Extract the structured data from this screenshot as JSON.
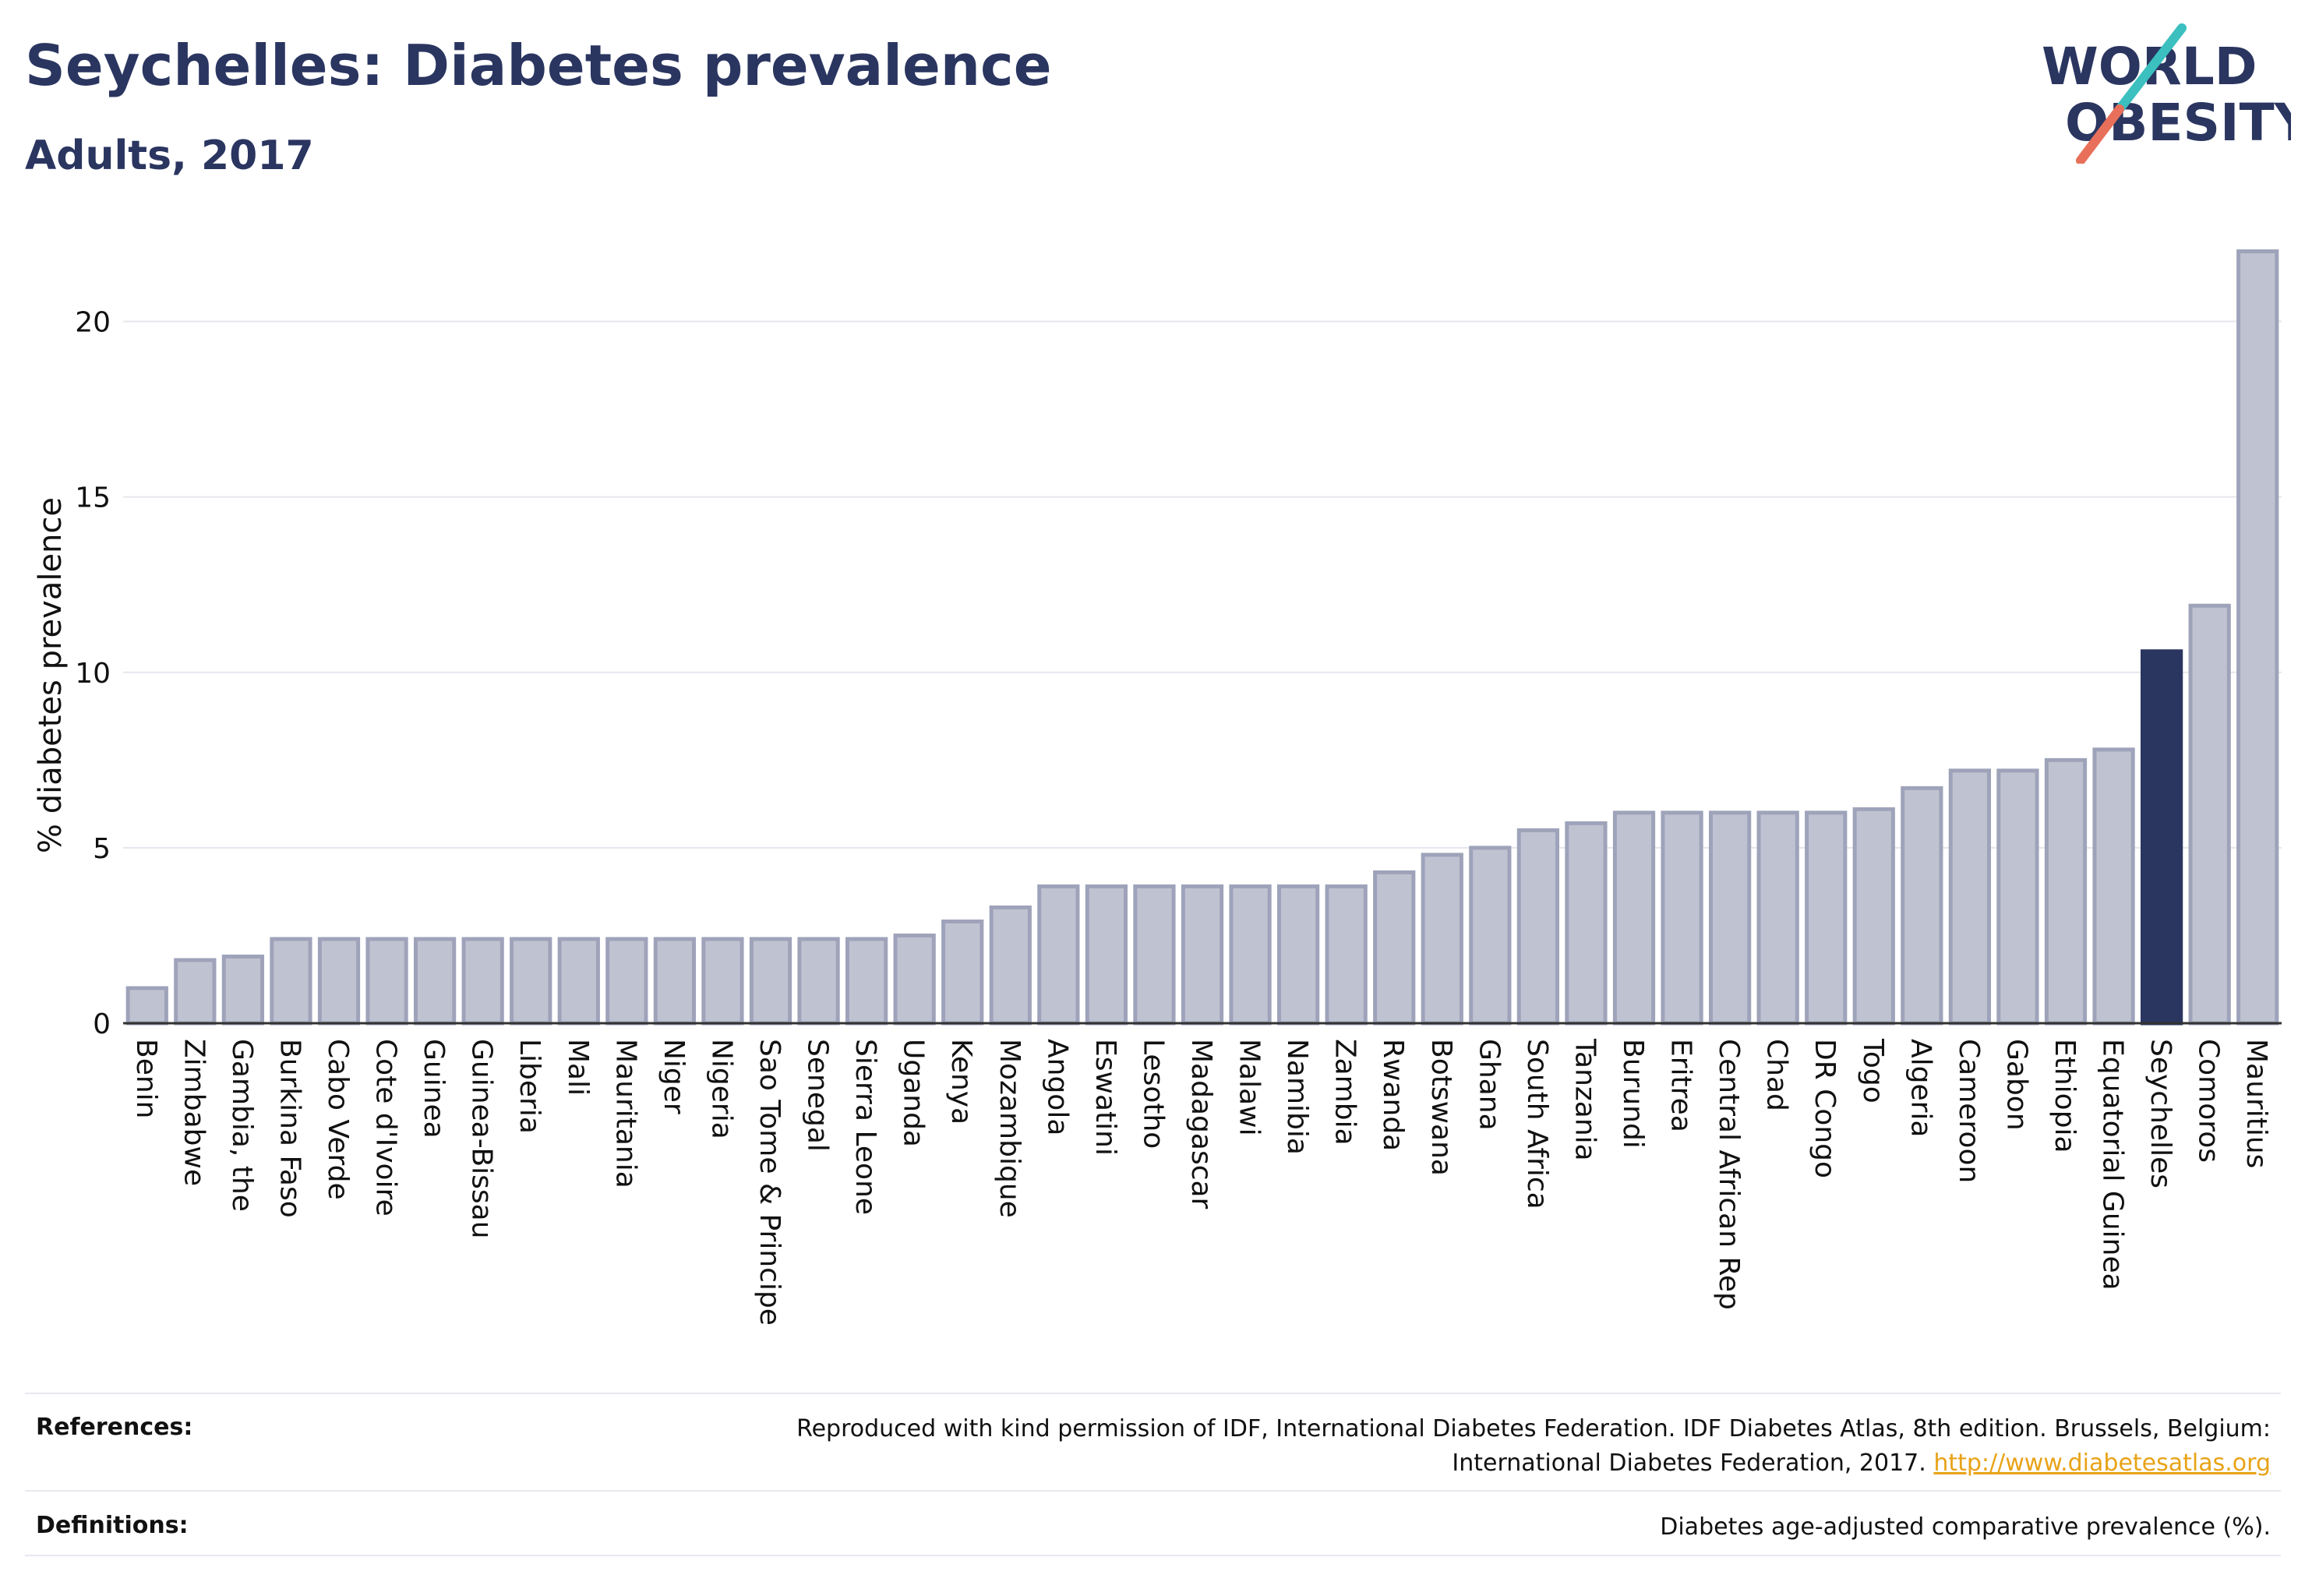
{
  "header": {
    "title": "Seychelles: Diabetes prevalence",
    "subtitle": "Adults, 2017"
  },
  "logo": {
    "line1": "WORLD",
    "line2": "OBESITY",
    "colors": {
      "text": "#2a3560",
      "slash_top": "#3bbfbf",
      "slash_bottom": "#e8705a"
    }
  },
  "colors": {
    "bar": "#bfc3d1",
    "bar_edge": "#9ea3ba",
    "highlight": "#2a3560"
  },
  "chart_data": {
    "type": "bar",
    "ylabel": "% diabetes prevalence",
    "ylim": [
      0,
      22.5
    ],
    "yticks": [
      0,
      5,
      10,
      15,
      20
    ],
    "grid": true,
    "highlight": "Seychelles",
    "categories": [
      "Benin",
      "Zimbabwe",
      "Gambia, the",
      "Burkina Faso",
      "Cabo Verde",
      "Cote d'Ivoire",
      "Guinea",
      "Guinea-Bissau",
      "Liberia",
      "Mali",
      "Mauritania",
      "Niger",
      "Nigeria",
      "Sao Tome & Principe",
      "Senegal",
      "Sierra Leone",
      "Uganda",
      "Kenya",
      "Mozambique",
      "Angola",
      "Eswatini",
      "Lesotho",
      "Madagascar",
      "Malawi",
      "Namibia",
      "Zambia",
      "Rwanda",
      "Botswana",
      "Ghana",
      "South Africa",
      "Tanzania",
      "Burundi",
      "Eritrea",
      "Central African Rep",
      "Chad",
      "DR Congo",
      "Togo",
      "Algeria",
      "Cameroon",
      "Gabon",
      "Ethiopia",
      "Equatorial Guinea",
      "Seychelles",
      "Comoros",
      "Mauritius"
    ],
    "values": [
      1.0,
      1.8,
      1.9,
      2.4,
      2.4,
      2.4,
      2.4,
      2.4,
      2.4,
      2.4,
      2.4,
      2.4,
      2.4,
      2.4,
      2.4,
      2.4,
      2.5,
      2.9,
      3.3,
      3.9,
      3.9,
      3.9,
      3.9,
      3.9,
      3.9,
      3.9,
      4.3,
      4.8,
      5.0,
      5.5,
      5.7,
      6.0,
      6.0,
      6.0,
      6.0,
      6.0,
      6.1,
      6.7,
      7.2,
      7.2,
      7.5,
      7.8,
      10.6,
      11.9,
      22.0
    ]
  },
  "footer": {
    "references_label": "References:",
    "references_line1": "Reproduced with kind permission of IDF, International Diabetes Federation. IDF Diabetes Atlas, 8th edition. Brussels, Belgium:",
    "references_line2": "International Diabetes Federation, 2017.",
    "references_link": "http://www.diabetesatlas.org",
    "definitions_label": "Definitions:",
    "definitions_text": "Diabetes age-adjusted comparative prevalence (%)."
  }
}
